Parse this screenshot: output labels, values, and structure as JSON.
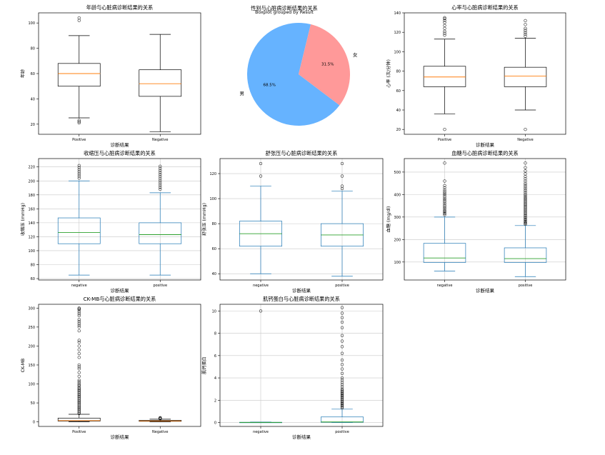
{
  "colors": {
    "box_black": "#000000",
    "box_blue": "#1f77b4",
    "median_orange": "#ff7f0e",
    "median_green": "#2ca02c",
    "grid": "#c8c8c8",
    "pie_blue": "#66b3ff",
    "pie_red": "#ff9999"
  },
  "chart_data": [
    {
      "id": "age",
      "type": "box",
      "title": "年龄与心脏病诊断结果的关系",
      "xlabel": "诊断结果",
      "ylabel": "年龄",
      "style": "black",
      "grid": false,
      "ylim": [
        12,
        108
      ],
      "yticks": [
        20,
        40,
        60,
        80,
        100
      ],
      "categories": [
        "Positive",
        "Negative"
      ],
      "boxes": [
        {
          "whislo": 25,
          "q1": 50,
          "med": 60,
          "q3": 68,
          "whishi": 90,
          "fliers": [
            21,
            22,
            23,
            102,
            104
          ]
        },
        {
          "whislo": 14,
          "q1": 42,
          "med": 52,
          "q3": 63,
          "whishi": 91,
          "fliers": []
        }
      ]
    },
    {
      "id": "gender",
      "type": "pie",
      "title": "性别与心脏病诊断结果的关系",
      "subtitle": "Boxplot grouped by Result",
      "slices": [
        {
          "label": "男",
          "value": 68.5,
          "pct_label": "68.5%"
        },
        {
          "label": "女",
          "value": 31.5,
          "pct_label": "31.5%"
        }
      ]
    },
    {
      "id": "heart_rate",
      "type": "box",
      "title": "心率与心脏病诊断结果的关系",
      "xlabel": "诊断结果",
      "ylabel": "心率 (次/分钟)",
      "style": "black",
      "grid": false,
      "ylim": [
        15,
        140
      ],
      "yticks": [
        20,
        40,
        60,
        80,
        100,
        120,
        140
      ],
      "categories": [
        "Positive",
        "Negative"
      ],
      "boxes": [
        {
          "whislo": 36,
          "q1": 64,
          "med": 74,
          "q3": 85,
          "whishi": 113,
          "fliers": [
            20,
            117,
            119,
            121,
            124,
            127,
            130,
            132,
            134,
            135
          ]
        },
        {
          "whislo": 40,
          "q1": 64,
          "med": 75,
          "q3": 84,
          "whishi": 114,
          "fliers": [
            20,
            116,
            118,
            120,
            122,
            124,
            128,
            132
          ]
        }
      ]
    },
    {
      "id": "systolic",
      "type": "box",
      "title": "收缩压与心脏病诊断结果的关系",
      "xlabel": "诊断结果",
      "ylabel": "收缩压 (mmHg)",
      "style": "blue",
      "grid": true,
      "ylim": [
        58,
        232
      ],
      "yticks": [
        60,
        80,
        100,
        120,
        140,
        160,
        180,
        200,
        220
      ],
      "categories": [
        "negative",
        "positive"
      ],
      "boxes": [
        {
          "whislo": 65,
          "q1": 110,
          "med": 126,
          "q3": 147,
          "whishi": 200,
          "fliers": [
            204,
            207,
            210,
            213,
            216,
            219,
            222
          ]
        },
        {
          "whislo": 65,
          "q1": 110,
          "med": 123,
          "q3": 140,
          "whishi": 183,
          "fliers": [
            188,
            191,
            194,
            197,
            200,
            203,
            206,
            209,
            212,
            215,
            218,
            221
          ]
        }
      ]
    },
    {
      "id": "diastolic",
      "type": "box",
      "title": "舒张压与心脏病诊断结果的关系",
      "xlabel": "诊断结果",
      "ylabel": "舒张压 (mmHg)",
      "style": "blue",
      "grid": true,
      "ylim": [
        35,
        132
      ],
      "yticks": [
        40,
        60,
        80,
        100,
        120
      ],
      "categories": [
        "negative",
        "positive"
      ],
      "boxes": [
        {
          "whislo": 40,
          "q1": 62,
          "med": 72,
          "q3": 82,
          "whishi": 110,
          "fliers": [
            118,
            128
          ]
        },
        {
          "whislo": 38,
          "q1": 62,
          "med": 71,
          "q3": 80,
          "whishi": 106,
          "fliers": [
            108,
            110,
            118,
            128
          ]
        }
      ]
    },
    {
      "id": "blood_sugar",
      "type": "box",
      "title": "血糖与心脏病诊断结果的关系",
      "xlabel": "诊断结果",
      "ylabel": "血糖 (mg/dl)",
      "style": "blue",
      "grid": true,
      "ylim": [
        20,
        560
      ],
      "yticks": [
        100,
        200,
        300,
        400,
        500
      ],
      "categories": [
        "negative",
        "positive"
      ],
      "boxes": [
        {
          "whislo": 60,
          "q1": 98,
          "med": 118,
          "q3": 183,
          "whishi": 300,
          "fliers": [
            310,
            315,
            320,
            325,
            330,
            338,
            345,
            352,
            360,
            368,
            375,
            382,
            390,
            398,
            405,
            412,
            420,
            430,
            440,
            460,
            540
          ]
        },
        {
          "whislo": 35,
          "q1": 98,
          "med": 115,
          "q3": 163,
          "whishi": 262,
          "fliers": [
            268,
            272,
            276,
            280,
            285,
            290,
            295,
            300,
            305,
            310,
            316,
            322,
            328,
            334,
            340,
            346,
            352,
            358,
            364,
            370,
            376,
            382,
            388,
            395,
            402,
            410,
            418,
            426,
            434,
            442,
            450,
            460,
            470,
            480,
            492,
            505,
            520,
            540
          ]
        }
      ]
    },
    {
      "id": "ckmb",
      "type": "box",
      "title": "CK-MB与心脏病诊断结果的关系",
      "xlabel": "诊断结果",
      "ylabel": "CK-MB",
      "style": "black",
      "grid": false,
      "ylim": [
        -12,
        310
      ],
      "yticks": [
        0,
        50,
        100,
        150,
        200,
        250,
        300
      ],
      "categories": [
        "Positive",
        "Negative"
      ],
      "boxes": [
        {
          "whislo": 0.3,
          "q1": 2,
          "med": 3.5,
          "q3": 10,
          "whishi": 20,
          "fliers": [
            22,
            25,
            28,
            31,
            34,
            37,
            40,
            43,
            46,
            49,
            52,
            55,
            58,
            61,
            64,
            67,
            70,
            73,
            76,
            79,
            82,
            85,
            88,
            91,
            95,
            98,
            102,
            106,
            110,
            120,
            130,
            140,
            145,
            150,
            170,
            180,
            190,
            200,
            210,
            215,
            240,
            250,
            255,
            260,
            265,
            270,
            280,
            285,
            290,
            295,
            298,
            300
          ]
        },
        {
          "whislo": 0.3,
          "q1": 1.5,
          "med": 2.5,
          "q3": 4,
          "whishi": 7,
          "fliers": [
            8,
            9,
            10,
            11
          ]
        }
      ]
    },
    {
      "id": "troponin",
      "type": "box",
      "title": "肌钙蛋白与心脏病诊断结果的关系",
      "xlabel": "诊断结果",
      "ylabel": "肌钙蛋白",
      "style": "blue",
      "grid": true,
      "ylim": [
        -0.35,
        10.6
      ],
      "yticks": [
        0,
        2,
        4,
        6,
        8,
        10
      ],
      "categories": [
        "negative",
        "positive"
      ],
      "boxes": [
        {
          "whislo": 0.002,
          "q1": 0.005,
          "med": 0.01,
          "q3": 0.02,
          "whishi": 0.04,
          "fliers": [
            10.0
          ]
        },
        {
          "whislo": 0.003,
          "q1": 0.02,
          "med": 0.05,
          "q3": 0.5,
          "whishi": 1.2,
          "fliers": [
            1.3,
            1.4,
            1.5,
            1.6,
            1.7,
            1.8,
            1.9,
            2.0,
            2.1,
            2.2,
            2.3,
            2.4,
            2.5,
            2.6,
            2.7,
            2.8,
            2.9,
            3.0,
            3.2,
            3.4,
            3.6,
            3.8,
            4.0,
            4.4,
            4.8,
            5.2,
            5.6,
            6.2,
            6.8,
            7.3,
            7.8,
            8.5,
            9.0,
            9.4,
            9.8,
            10.3
          ]
        }
      ]
    }
  ]
}
